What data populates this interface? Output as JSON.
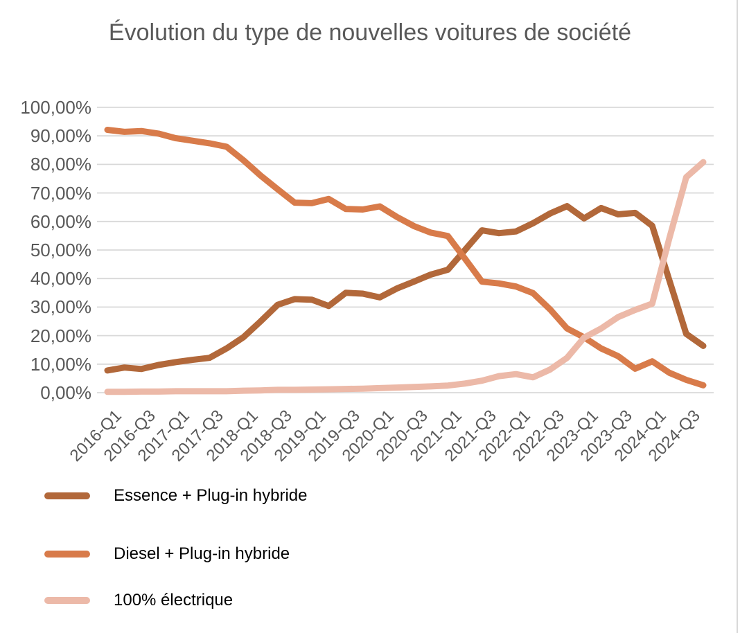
{
  "page": {
    "background": "#ffffff",
    "edge_line_color": "#d9d9d9"
  },
  "chart_data": {
    "type": "line",
    "title": "Évolution du type de nouvelles voitures de société",
    "title_color": "#595959",
    "axis_label_color": "#595959",
    "gridline_color": "#d9d9d9",
    "grid": "horizontal",
    "legend_position": "bottom-left",
    "legend_text_color": "#000000",
    "ylim": [
      0,
      100
    ],
    "y_ticks": [
      "100,00%",
      "90,00%",
      "80,00%",
      "70,00%",
      "60,00%",
      "50,00%",
      "40,00%",
      "30,00%",
      "20,00%",
      "10,00%",
      "0,00%"
    ],
    "x": [
      "2016-Q1",
      "2016-Q2",
      "2016-Q3",
      "2016-Q4",
      "2017-Q1",
      "2017-Q2",
      "2017-Q3",
      "2017-Q4",
      "2018-Q1",
      "2018-Q2",
      "2018-Q3",
      "2018-Q4",
      "2019-Q1",
      "2019-Q2",
      "2019-Q3",
      "2019-Q4",
      "2020-Q1",
      "2020-Q2",
      "2020-Q3",
      "2020-Q4",
      "2021-Q1",
      "2021-Q2",
      "2021-Q3",
      "2021-Q4",
      "2022-Q1",
      "2022-Q2",
      "2022-Q3",
      "2022-Q4",
      "2023-Q1",
      "2023-Q2",
      "2023-Q3",
      "2023-Q4",
      "2024-Q1",
      "2024-Q2",
      "2024-Q3",
      "2024-Q4"
    ],
    "x_tick_labels": [
      "2016-Q1",
      "2016-Q3",
      "2017-Q1",
      "2017-Q3",
      "2018-Q1",
      "2018-Q3",
      "2019-Q1",
      "2019-Q3",
      "2020-Q1",
      "2020-Q3",
      "2021-Q1",
      "2021-Q3",
      "2022-Q1",
      "2022-Q3",
      "2023-Q1",
      "2023-Q3",
      "2024-Q1",
      "2024-Q3"
    ],
    "series": [
      {
        "name": "Essence + Plug-in hybride",
        "color": "#b2683a",
        "values": [
          7.8,
          8.8,
          8.3,
          9.7,
          10.7,
          11.5,
          12.2,
          15.5,
          19.5,
          25.0,
          30.8,
          32.8,
          32.6,
          30.4,
          35.0,
          34.7,
          33.4,
          36.5,
          38.9,
          41.4,
          43.1,
          50.0,
          56.9,
          55.9,
          56.5,
          59.4,
          62.8,
          65.4,
          61.1,
          64.7,
          62.5,
          63.0,
          58.5,
          39.5,
          20.6,
          16.4
        ]
      },
      {
        "name": "Diesel + Plug-in hybride",
        "color": "#d87b4a",
        "values": [
          92.1,
          91.4,
          91.7,
          90.8,
          89.2,
          88.3,
          87.4,
          86.2,
          81.4,
          76.1,
          71.3,
          66.6,
          66.4,
          67.9,
          64.4,
          64.2,
          65.3,
          61.6,
          58.4,
          56.1,
          54.9,
          47.0,
          38.9,
          38.3,
          37.2,
          34.9,
          29.2,
          22.5,
          19.4,
          15.5,
          12.8,
          8.4,
          11.0,
          7.0,
          4.5,
          2.6
        ]
      },
      {
        "name": "100% électrique",
        "color": "#ecb9a8",
        "values": [
          0.3,
          0.3,
          0.4,
          0.4,
          0.5,
          0.5,
          0.5,
          0.5,
          0.7,
          0.8,
          1.0,
          1.0,
          1.1,
          1.2,
          1.3,
          1.4,
          1.6,
          1.8,
          2.0,
          2.2,
          2.5,
          3.2,
          4.2,
          5.8,
          6.5,
          5.4,
          8.1,
          12.2,
          19.3,
          22.5,
          26.5,
          29.0,
          31.2,
          54.0,
          75.5,
          80.8
        ]
      }
    ]
  }
}
